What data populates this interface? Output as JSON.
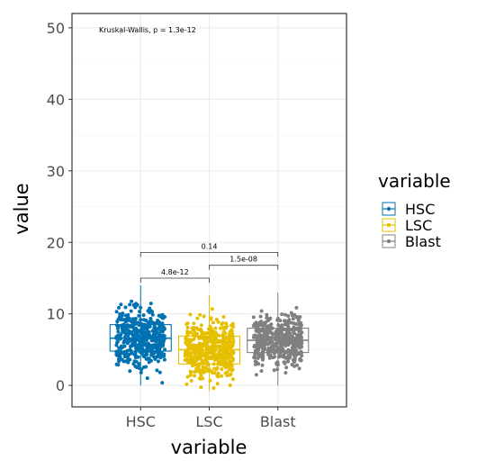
{
  "chart_data": {
    "type": "box",
    "xlabel": "variable",
    "ylabel": "value",
    "ylim": [
      -3,
      52
    ],
    "yticks": [
      0,
      10,
      20,
      30,
      40,
      50
    ],
    "grid": true,
    "legend": {
      "title": "variable",
      "position": "right"
    },
    "categories": [
      "HSC",
      "LSC",
      "Blast"
    ],
    "series": [
      {
        "name": "HSC",
        "color": "#0072B2",
        "min": 0.0,
        "q1": 4.8,
        "median": 6.6,
        "q3": 8.5,
        "max": 14.0,
        "n": 450
      },
      {
        "name": "LSC",
        "color": "#E6C000",
        "min": -0.8,
        "q1": 3.0,
        "median": 5.0,
        "q3": 6.9,
        "max": 12.6,
        "n": 500
      },
      {
        "name": "Blast",
        "color": "#808080",
        "min": 0.0,
        "q1": 4.6,
        "median": 6.3,
        "q3": 8.0,
        "max": 13.0,
        "n": 470
      }
    ],
    "annotations": {
      "global_test": "Kruskal-Wallis, p = 1.3e-12",
      "comparisons": [
        {
          "group1": "HSC",
          "group2": "LSC",
          "label": "4.8e-12",
          "y": 15.0
        },
        {
          "group1": "LSC",
          "group2": "Blast",
          "label": "1.5e-08",
          "y": 16.8
        },
        {
          "group1": "HSC",
          "group2": "Blast",
          "label": "0.14",
          "y": 18.6
        }
      ]
    }
  }
}
